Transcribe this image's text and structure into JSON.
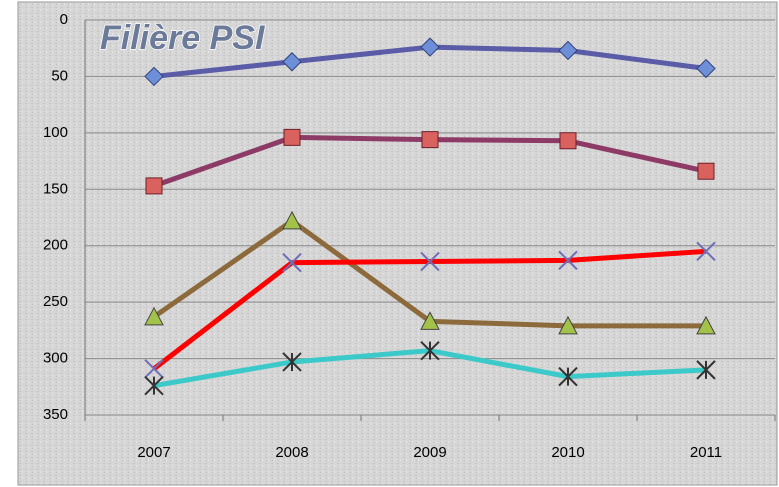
{
  "chart_data": {
    "type": "line",
    "title": "Filière PSI",
    "categories": [
      "2007",
      "2008",
      "2009",
      "2010",
      "2011"
    ],
    "series": [
      {
        "color": "#5a5ca8",
        "marker": "diamond",
        "marker_color": "#6d8fd8",
        "values": [
          50,
          37,
          24,
          27,
          43
        ]
      },
      {
        "color": "#8e3a66",
        "marker": "square",
        "marker_color": "#d9625e",
        "values": [
          147,
          104,
          106,
          107,
          134
        ]
      },
      {
        "color": "#8c6a3c",
        "marker": "triangle",
        "marker_color": "#a3c24a",
        "values": [
          263,
          178,
          267,
          271,
          271
        ]
      },
      {
        "color": "#ff0000",
        "marker": "x",
        "marker_color": "#6f6fb8",
        "values": [
          309,
          215,
          214,
          213,
          205
        ]
      },
      {
        "color": "#3cc9c9",
        "marker": "star",
        "marker_color": "#333333",
        "values": [
          324,
          303,
          293,
          316,
          310
        ]
      }
    ],
    "ylim": [
      0,
      350
    ],
    "yticks": [
      0,
      50,
      100,
      150,
      200,
      250,
      300,
      350
    ],
    "y_reversed": true,
    "grid": true
  }
}
